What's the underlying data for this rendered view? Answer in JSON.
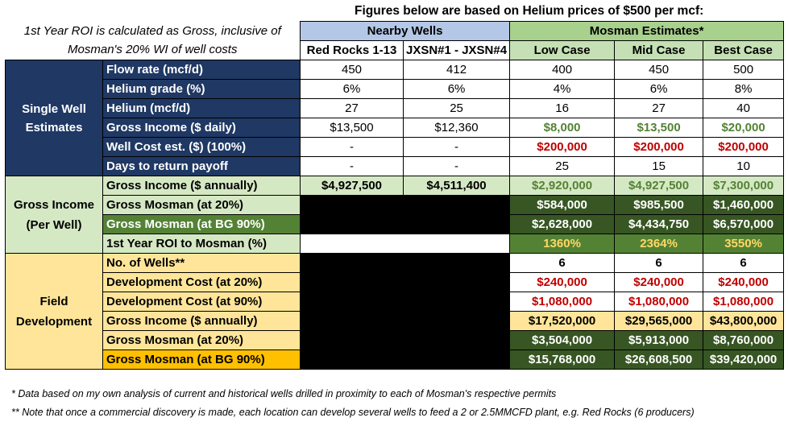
{
  "title": "Figures below are based on Helium prices of $500 per mcf:",
  "top_note": "1st Year ROI is calculated as Gross, inclusive of Mosman's 20% WI of well costs",
  "groups": {
    "nearby": "Nearby Wells",
    "mosman": "Mosman Estimates*"
  },
  "columns": [
    "Red Rocks 1-13",
    "JXSN#1 - JXSN#4",
    "Low Case",
    "Mid Case",
    "Best Case"
  ],
  "sections": {
    "single": "Single Well Estimates",
    "gross": "Gross Income (Per Well)",
    "field": "Field Development"
  },
  "rows": [
    {
      "label": "Flow rate (mcf/d)",
      "values": [
        "450",
        "412",
        "400",
        "450",
        "500"
      ]
    },
    {
      "label": "Helium grade (%)",
      "values": [
        "6%",
        "6%",
        "4%",
        "6%",
        "8%"
      ]
    },
    {
      "label": "Helium (mcf/d)",
      "values": [
        "27",
        "25",
        "16",
        "27",
        "40"
      ]
    },
    {
      "label": "Gross Income ($ daily)",
      "values": [
        "$13,500",
        "$12,360",
        "$8,000",
        "$13,500",
        "$20,000"
      ]
    },
    {
      "label": "Well Cost est. ($) (100%)",
      "values": [
        "-",
        "-",
        "$200,000",
        "$200,000",
        "$200,000"
      ]
    },
    {
      "label": "Days to return payoff",
      "values": [
        "-",
        "-",
        "25",
        "15",
        "10"
      ]
    },
    {
      "label": "Gross Income ($ annually)",
      "values": [
        "$4,927,500",
        "$4,511,400",
        "$2,920,000",
        "$4,927,500",
        "$7,300,000"
      ]
    },
    {
      "label": "Gross Mosman (at 20%)",
      "values": [
        "$584,000",
        "$985,500",
        "$1,460,000"
      ]
    },
    {
      "label": "Gross Mosman (at BG 90%)",
      "values": [
        "$2,628,000",
        "$4,434,750",
        "$6,570,000"
      ]
    },
    {
      "label": "1st Year ROI to Mosman (%)",
      "values": [
        "1360%",
        "2364%",
        "3550%"
      ]
    },
    {
      "label": "No. of Wells**",
      "values": [
        "6",
        "6",
        "6"
      ]
    },
    {
      "label": "Development Cost (at 20%)",
      "values": [
        "$240,000",
        "$240,000",
        "$240,000"
      ]
    },
    {
      "label": "Development Cost (at 90%)",
      "values": [
        "$1,080,000",
        "$1,080,000",
        "$1,080,000"
      ]
    },
    {
      "label": "Gross Income ($ annually)",
      "values": [
        "$17,520,000",
        "$29,565,000",
        "$43,800,000"
      ]
    },
    {
      "label": "Gross Mosman (at 20%)",
      "values": [
        "$3,504,000",
        "$5,913,000",
        "$8,760,000"
      ]
    },
    {
      "label": "Gross Mosman (at BG 90%)",
      "values": [
        "$15,768,000",
        "$26,608,500",
        "$39,420,000"
      ]
    }
  ],
  "footnotes": [
    "* Data based on my own analysis of current and historical wells drilled in proximity to each of Mosman's respective permits",
    "** Note that once a commercial discovery is made, each location can develop several wells to feed a 2 or 2.5MMCFD plant, e.g. Red Rocks (6 producers)"
  ],
  "colors": {
    "navy": "#1f3864",
    "header_blue": "#b4c7e7",
    "header_green": "#a9d18e",
    "light_green": "#d5e8c4",
    "dark_green": "#375623",
    "mid_green": "#548235",
    "light_yellow": "#fee599",
    "orange": "#ffc000",
    "red_text": "#c00000",
    "gold_text": "#ffd966"
  }
}
